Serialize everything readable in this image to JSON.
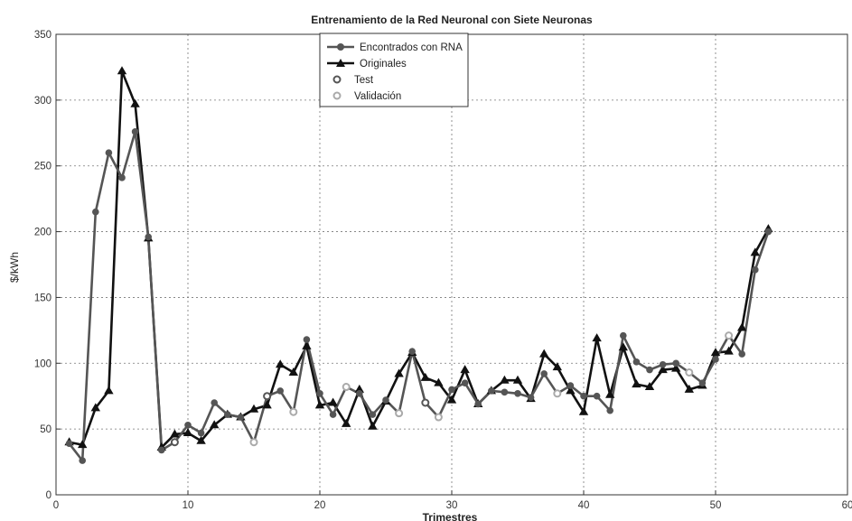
{
  "chart_data": {
    "type": "line",
    "title": "Entrenamiento de la Red Neuronal con Siete Neuronas",
    "xlabel": "Trimestres",
    "ylabel": "$/kWh",
    "xlim": [
      0,
      60
    ],
    "ylim": [
      0,
      350
    ],
    "x_ticks": [
      "0",
      "10",
      "20",
      "30",
      "40",
      "50",
      "60"
    ],
    "y_ticks": [
      "0",
      "50",
      "100",
      "150",
      "200",
      "250",
      "300",
      "350"
    ],
    "grid": true,
    "legend_position": "top-center",
    "colors": {
      "rna": "#555555",
      "originales": "#111111",
      "test": "#555555",
      "validacion": "#aaaaaa",
      "grid": "#777777"
    },
    "series": [
      {
        "name": "Encontrados con RNA",
        "marker": "circle",
        "x": [
          1,
          2,
          3,
          4,
          5,
          6,
          7,
          8,
          9,
          10,
          11,
          12,
          13,
          14,
          15,
          16,
          17,
          18,
          19,
          20,
          21,
          22,
          23,
          24,
          25,
          26,
          27,
          28,
          29,
          30,
          31,
          32,
          33,
          34,
          35,
          36,
          37,
          38,
          39,
          40,
          41,
          42,
          43,
          44,
          45,
          46,
          47,
          48,
          49,
          50,
          51,
          52,
          53,
          54
        ],
        "values": [
          39,
          26,
          215,
          260,
          241,
          276,
          196,
          34,
          40,
          53,
          47,
          70,
          61,
          59,
          40,
          75,
          79,
          63,
          118,
          77,
          61,
          82,
          77,
          61,
          72,
          62,
          109,
          70,
          59,
          80,
          85,
          69,
          79,
          78,
          77,
          74,
          92,
          77,
          83,
          75,
          75,
          64,
          121,
          101,
          95,
          99,
          100,
          93,
          85,
          103,
          121,
          107,
          171,
          200
        ]
      },
      {
        "name": "Originales",
        "marker": "triangle",
        "x": [
          1,
          2,
          3,
          4,
          5,
          6,
          7,
          8,
          9,
          10,
          11,
          12,
          13,
          14,
          15,
          16,
          17,
          18,
          19,
          20,
          21,
          22,
          23,
          24,
          25,
          26,
          27,
          28,
          29,
          30,
          31,
          32,
          33,
          34,
          35,
          36,
          37,
          38,
          39,
          40,
          41,
          42,
          43,
          44,
          45,
          46,
          47,
          48,
          49,
          50,
          51,
          52,
          53,
          54
        ],
        "values": [
          40,
          38,
          66,
          79,
          322,
          297,
          195,
          36,
          46,
          47,
          41,
          53,
          61,
          59,
          65,
          68,
          99,
          93,
          113,
          68,
          70,
          54,
          80,
          52,
          71,
          92,
          108,
          89,
          85,
          72,
          95,
          69,
          79,
          87,
          87,
          73,
          107,
          97,
          79,
          63,
          119,
          76,
          112,
          84,
          82,
          95,
          96,
          80,
          83,
          108,
          109,
          127,
          184,
          202
        ]
      },
      {
        "name": "Test",
        "marker": "open-circle",
        "x": [
          9,
          16,
          28
        ],
        "values": [
          40,
          75,
          70
        ]
      },
      {
        "name": "Validación",
        "marker": "open-circle",
        "x": [
          15,
          18,
          22,
          26,
          29,
          38,
          48,
          51
        ],
        "values": [
          40,
          63,
          82,
          62,
          59,
          77,
          93,
          121
        ]
      }
    ]
  }
}
